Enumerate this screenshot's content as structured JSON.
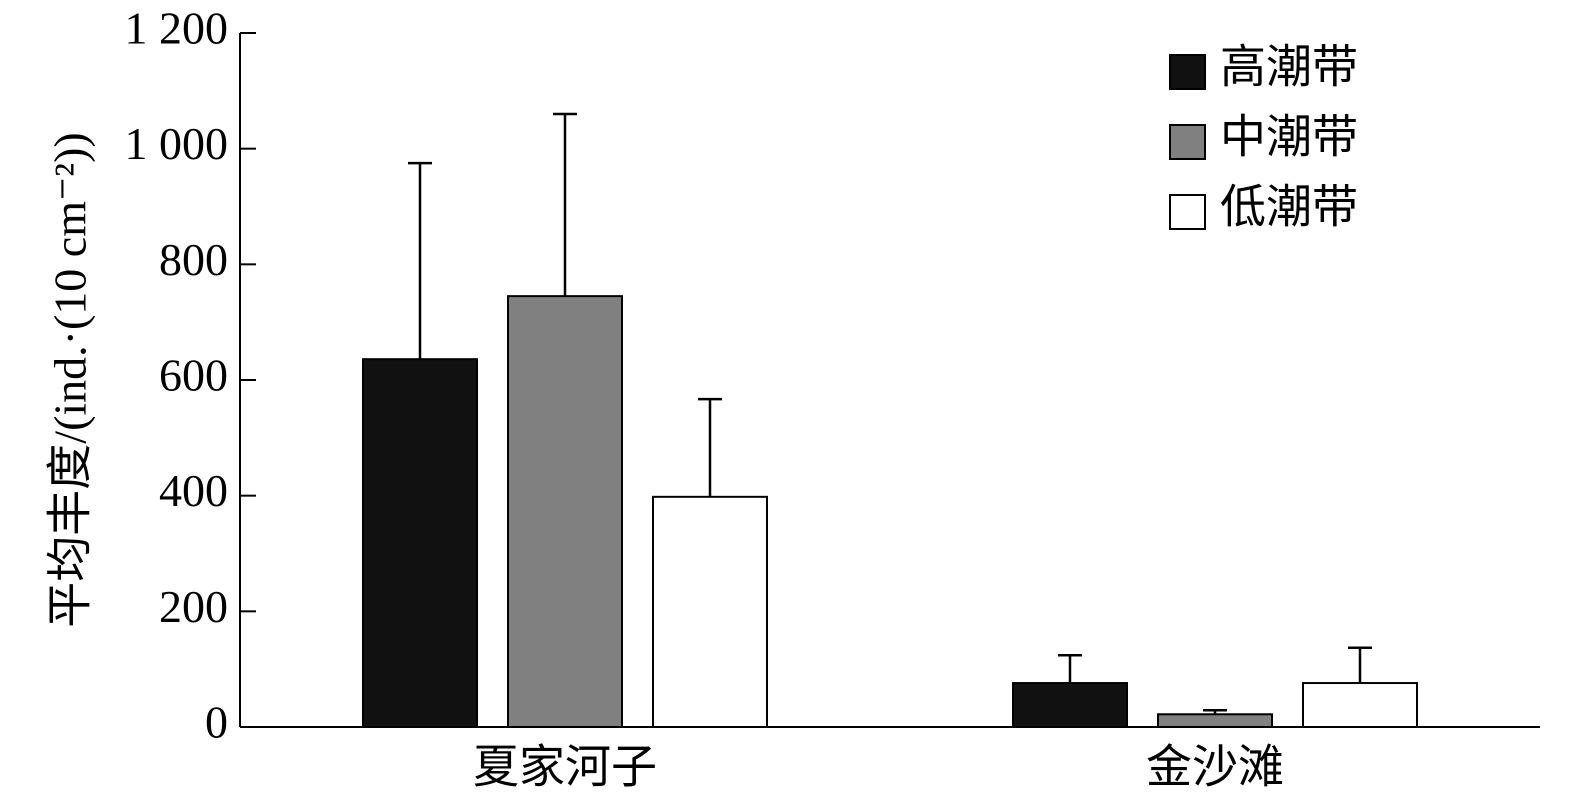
{
  "chart_data": {
    "type": "bar",
    "y_label": "平均丰度/(ind.·(10 cm⁻²))",
    "categories": [
      "夏家河子",
      "金沙滩"
    ],
    "series": [
      {
        "name": "高潮带",
        "color": "#111111",
        "values": [
          636,
          76
        ],
        "errors": [
          339,
          48
        ]
      },
      {
        "name": "中潮带",
        "color": "#808080",
        "values": [
          745,
          22
        ],
        "errors": [
          315,
          7
        ]
      },
      {
        "name": "低潮带",
        "color": "#ffffff",
        "values": [
          398,
          76
        ],
        "errors": [
          169,
          61
        ]
      }
    ],
    "ylim": [
      0,
      1200
    ],
    "yticks": [
      0,
      200,
      400,
      600,
      800,
      {
        "value": 1000,
        "label": "1 000"
      },
      {
        "value": 1200,
        "label": "1 200"
      }
    ],
    "legend": "top-right"
  }
}
